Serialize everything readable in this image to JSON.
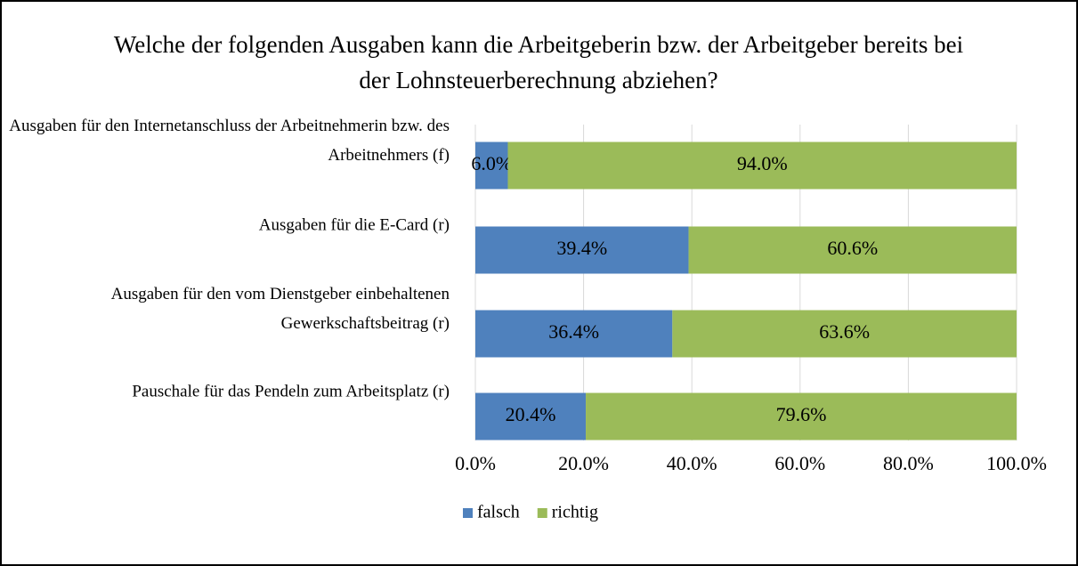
{
  "chart_data": {
    "type": "stacked-barh",
    "title": "Welche der folgenden Ausgaben kann die Arbeitgeberin bzw. der Arbeitgeber bereits bei der Lohnsteuerberechnung abziehen?",
    "categories": [
      "Ausgaben für den Internetanschluss der Arbeitnehmerin bzw. des Arbeitnehmers (f)",
      "Ausgaben für die E-Card (r)",
      "Ausgaben für den vom Dienstgeber einbehaltenen Gewerkschaftsbeitrag (r)",
      "Pauschale für das Pendeln zum Arbeitsplatz (r)"
    ],
    "series": [
      {
        "name": "falsch",
        "color": "#4f81bd",
        "values": [
          6.0,
          39.4,
          36.4,
          20.4
        ],
        "value_labels": [
          "6.0%",
          "39.4%",
          "36.4%",
          "20.4%"
        ]
      },
      {
        "name": "richtig",
        "color": "#9bbb59",
        "values": [
          94.0,
          60.6,
          63.6,
          79.6
        ],
        "value_labels": [
          "94.0%",
          "60.6%",
          "63.6%",
          "79.6%"
        ]
      }
    ],
    "xlim": [
      0,
      100
    ],
    "xticks": [
      {
        "value": 0,
        "label": "0.0%"
      },
      {
        "value": 20,
        "label": "20.0%"
      },
      {
        "value": 40,
        "label": "40.0%"
      },
      {
        "value": 60,
        "label": "60.0%"
      },
      {
        "value": 80,
        "label": "80.0%"
      },
      {
        "value": 100,
        "label": "100.0%"
      }
    ],
    "grid": true,
    "legend": "bottom"
  }
}
